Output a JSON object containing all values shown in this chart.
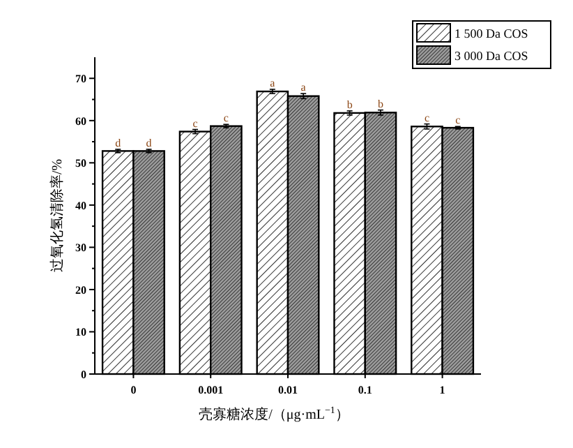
{
  "chart_data": {
    "type": "bar",
    "xlabel": "壳寡糖浓度/（μg·mL$^{−1}$）",
    "ylabel": "过氧化氢清除率/%",
    "categories": [
      "0",
      "0.001",
      "0.01",
      "0.1",
      "1"
    ],
    "series": [
      {
        "name": "1 500 Da COS",
        "color": "#ffffff",
        "values": [
          52.8,
          57.4,
          66.9,
          61.8,
          58.6
        ],
        "errors": [
          0.4,
          0.5,
          0.5,
          0.5,
          0.6
        ],
        "value_labels": [
          "d",
          "c",
          "a",
          "b",
          "c"
        ]
      },
      {
        "name": "3 000 Da COS",
        "color": "#9a9a9a",
        "values": [
          52.8,
          58.7,
          65.8,
          61.9,
          58.3
        ],
        "errors": [
          0.4,
          0.4,
          0.6,
          0.6,
          0.3
        ],
        "value_labels": [
          "d",
          "c",
          "a",
          "b",
          "c"
        ]
      }
    ],
    "ylim": [
      0,
      75
    ],
    "yticks": [
      0,
      10,
      20,
      30,
      40,
      50,
      60,
      70
    ],
    "grid": false,
    "legend": "top right"
  }
}
